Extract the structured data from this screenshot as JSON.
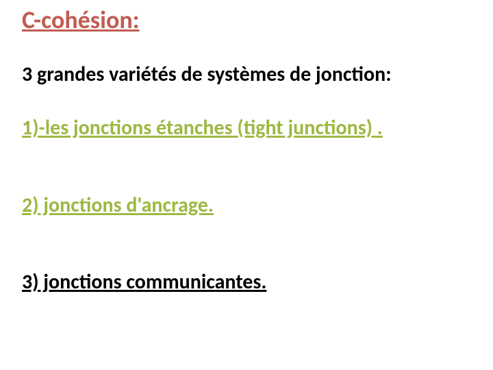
{
  "colors": {
    "title": "#c05c52",
    "subtitle": "#000000",
    "item1": "#9db843",
    "item2": "#9db843",
    "item3": "#000000",
    "background": "#ffffff"
  },
  "title": "C-cohésion:",
  "subtitle": "3 grandes variétés de systèmes de jonction:",
  "items": [
    "1)-les jonctions étanches (tight junctions) .",
    "2) jonctions d'ancrage.",
    "3) jonctions communicantes."
  ]
}
